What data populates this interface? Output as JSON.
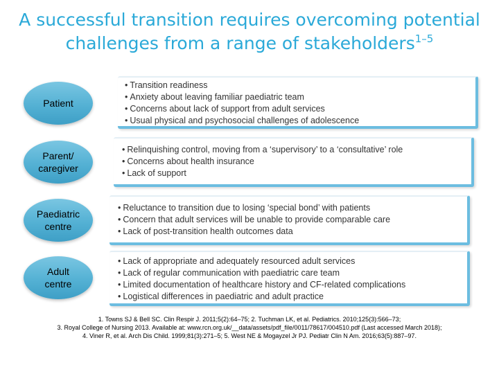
{
  "title": {
    "line1": "A successful transition requires overcoming potential",
    "line2": "challenges from a range of stakeholders",
    "superscript": "1–5"
  },
  "stakeholders": [
    {
      "label_lines": [
        "Patient"
      ],
      "challenges": [
        "Transition readiness",
        "Anxiety about leaving familiar paediatric team",
        "Concerns about lack of support from adult services",
        "Usual physical and psychosocial challenges of adolescence"
      ]
    },
    {
      "label_lines": [
        "Parent/",
        "caregiver"
      ],
      "challenges": [
        "Relinquishing control, moving from a ‘supervisory’ to a ‘consultative’ role",
        "Concerns about health insurance",
        "Lack of support"
      ]
    },
    {
      "label_lines": [
        "Paediatric",
        "centre"
      ],
      "challenges": [
        "Reluctance to transition due to losing ‘special bond’ with patients",
        "Concern that adult services will be unable to provide comparable care",
        "Lack of post-transition health outcomes data"
      ]
    },
    {
      "label_lines": [
        "Adult",
        "centre"
      ],
      "challenges": [
        "Lack of appropriate and adequately resourced adult services",
        "Lack of regular communication with paediatric care team",
        "Limited documentation of healthcare history and CF-related complications",
        "Logistical differences in paediatric and adult practice"
      ]
    }
  ],
  "references": [
    "1. Towns SJ & Bell SC. Clin Respir J. 2011;5(2):64–75; 2. Tuchman LK, et al. Pediatrics. 2010;125(3):566–73;",
    "3. Royal College of Nursing 2013. Available at: www.rcn.org.uk/__data/assets/pdf_file/0011/78617/004510.pdf (Last accessed March 2018);",
    "4. Viner R, et al. Arch Dis Child. 1999;81(3):271–5; 5. West NE & Mogayzel Jr PJ. Pediatr Clin N Am. 2016;63(5):887–97."
  ],
  "colors": {
    "title": "#2aa9d8",
    "oval": "#54b1d4",
    "box_border": "#6cbde0"
  }
}
